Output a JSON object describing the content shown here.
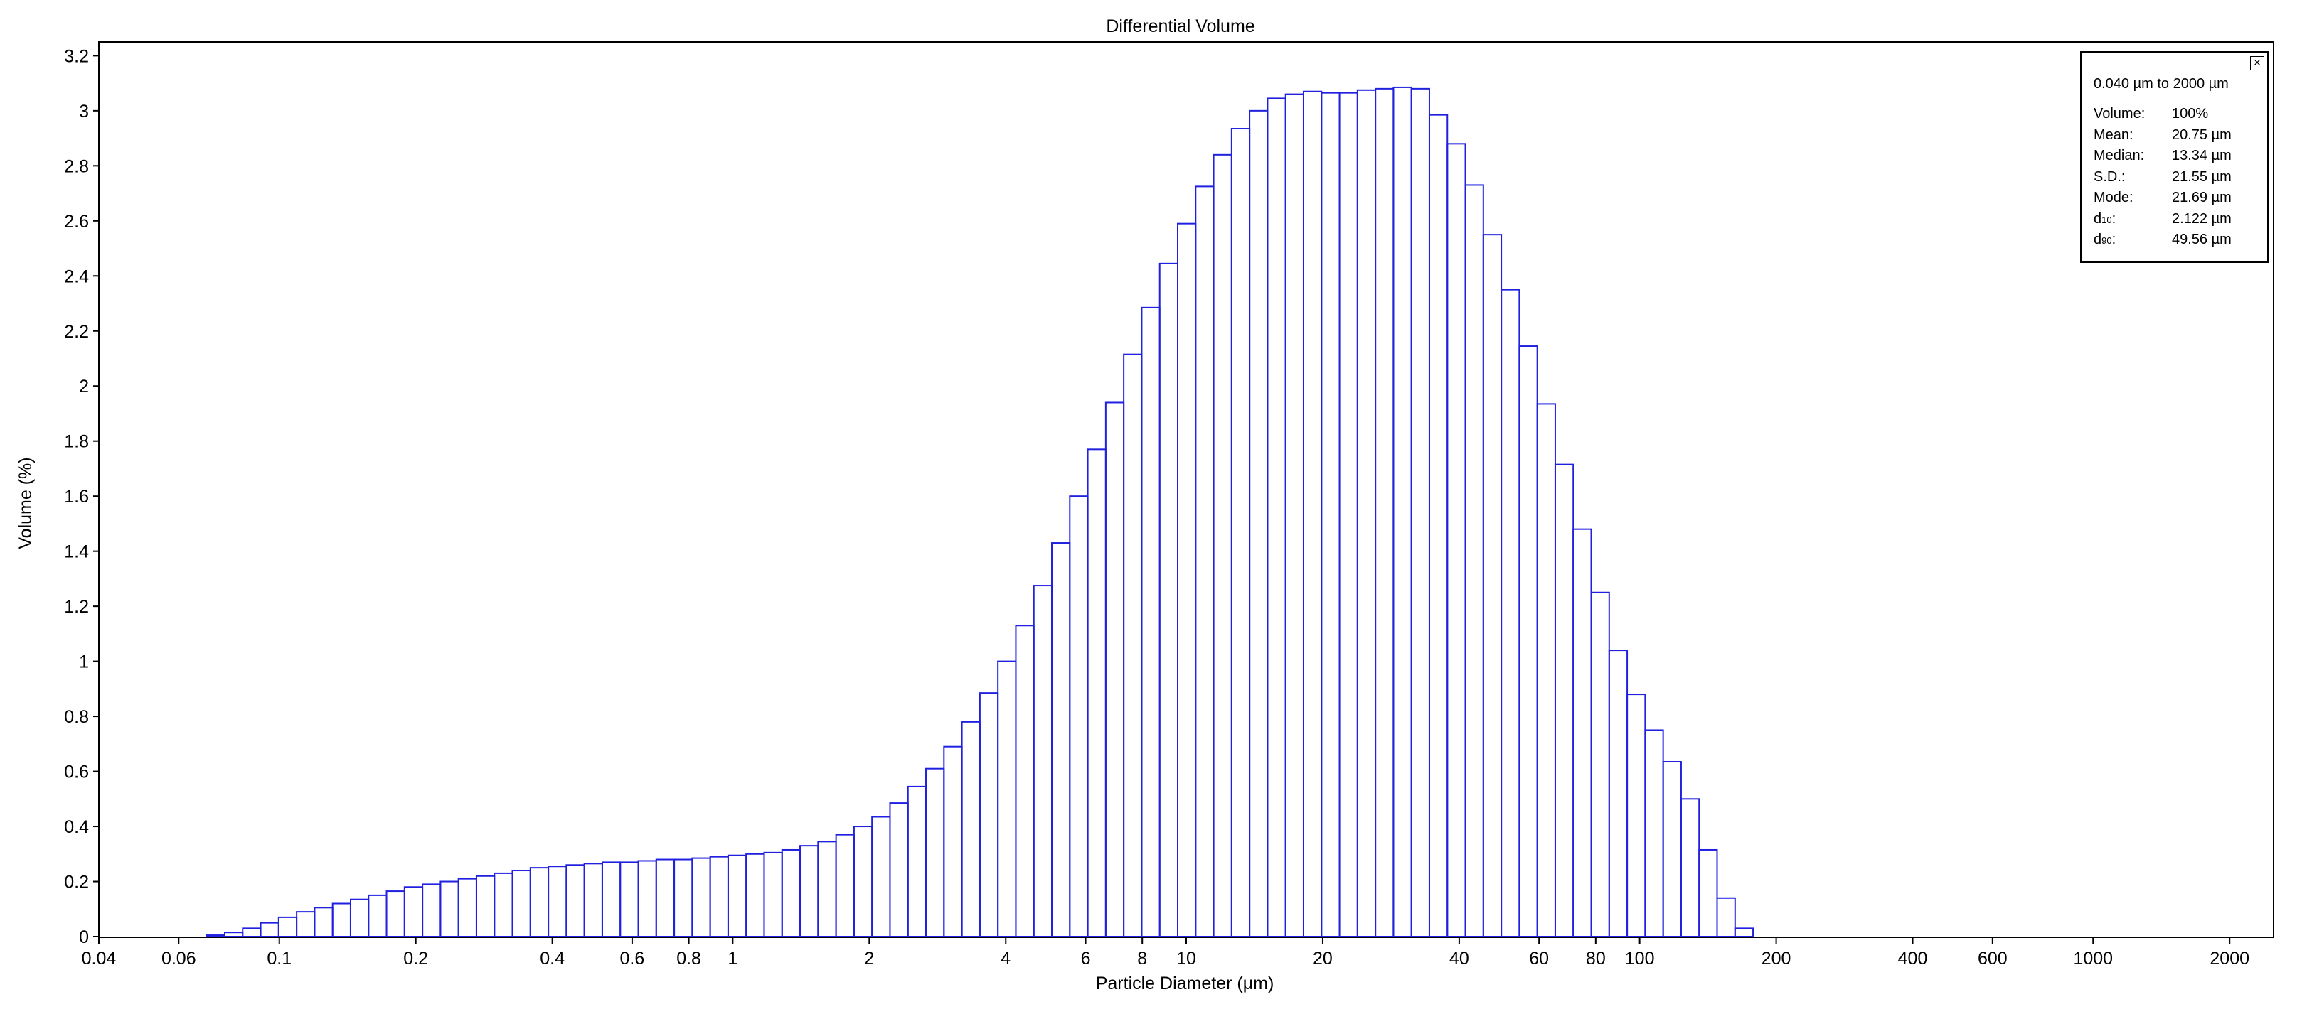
{
  "chart_data": {
    "type": "bar",
    "title": "Differential Volume",
    "xlabel": "Particle Diameter (μm)",
    "ylabel": "Volume (%)",
    "xscale": "log",
    "xlim": [
      0.04,
      2500
    ],
    "ylim": [
      0,
      3.25
    ],
    "grid": false,
    "x_ticks": [
      "0.04",
      "0.06",
      "0.1",
      "0.2",
      "0.4",
      "0.6",
      "0.8",
      "1",
      "2",
      "4",
      "6",
      "8",
      "10",
      "20",
      "40",
      "60",
      "80",
      "100",
      "200",
      "400",
      "600",
      "1000",
      "2000"
    ],
    "y_ticks": [
      "0",
      "0.2",
      "0.4",
      "0.6",
      "0.8",
      "1",
      "1.2",
      "1.4",
      "1.6",
      "1.8",
      "2",
      "2.2",
      "2.4",
      "2.6",
      "2.8",
      "3",
      "3.2"
    ],
    "bin_start": 0.04,
    "bin_ratio": 1.0956,
    "values": [
      0,
      0,
      0,
      0,
      0,
      0,
      0.005,
      0.015,
      0.03,
      0.05,
      0.07,
      0.09,
      0.105,
      0.12,
      0.135,
      0.15,
      0.165,
      0.18,
      0.19,
      0.2,
      0.21,
      0.22,
      0.23,
      0.24,
      0.25,
      0.255,
      0.26,
      0.265,
      0.27,
      0.27,
      0.275,
      0.28,
      0.28,
      0.285,
      0.29,
      0.295,
      0.3,
      0.305,
      0.315,
      0.33,
      0.345,
      0.37,
      0.4,
      0.435,
      0.485,
      0.545,
      0.61,
      0.69,
      0.78,
      0.885,
      1.0,
      1.13,
      1.275,
      1.43,
      1.6,
      1.77,
      1.94,
      2.115,
      2.285,
      2.445,
      2.59,
      2.725,
      2.84,
      2.935,
      3.0,
      3.045,
      3.06,
      3.07,
      3.065,
      3.065,
      3.075,
      3.08,
      3.085,
      3.08,
      2.985,
      2.88,
      2.73,
      2.55,
      2.35,
      2.145,
      1.935,
      1.715,
      1.48,
      1.25,
      1.04,
      0.88,
      0.75,
      0.635,
      0.5,
      0.315,
      0.14,
      0.03,
      0
    ]
  },
  "stats": {
    "range": "0.040 µm to 2000 µm",
    "rows": [
      {
        "label": "Volume:",
        "value": "100%"
      },
      {
        "label": "Mean:",
        "value": "20.75 µm"
      },
      {
        "label": "Median:",
        "value": "13.34 µm"
      },
      {
        "label": "S.D.:",
        "value": "21.55 µm"
      },
      {
        "label": "Mode:",
        "value": "21.69 µm"
      },
      {
        "label": "d",
        "sub": "10",
        "suffix": ":",
        "value": "2.122 µm"
      },
      {
        "label": "d",
        "sub": "90",
        "suffix": ":",
        "value": "49.56 µm"
      }
    ],
    "close_icon": "close-icon"
  },
  "colors": {
    "bar_stroke": "#2020e0",
    "axis": "#000000",
    "background": "#ffffff"
  }
}
